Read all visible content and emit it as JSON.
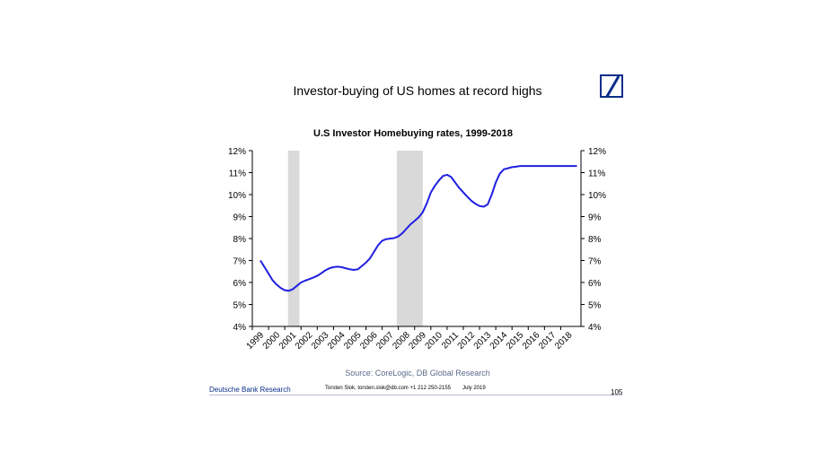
{
  "slide": {
    "title": "Investor-buying of US homes at record highs",
    "logo_icon": "deutsche-bank-logo"
  },
  "footer": {
    "brand": "Deutsche Bank Research",
    "contact": "Torsten Slok, torsten.slok@db.com  +1 212 250-2155",
    "date": "July 2019",
    "page": "105"
  },
  "colors": {
    "line": "#1f1fe0",
    "recession": "#d9d9d9",
    "brand": "#0a2e8a"
  },
  "chart_data": {
    "type": "line",
    "title": "U.S Investor Homebuying rates, 1999-2018",
    "source": "Source: CoreLogic, DB Global Research",
    "xlabel": "",
    "ylabel": "",
    "categories": [
      "1999",
      "2000",
      "2001",
      "2002",
      "2003",
      "2004",
      "2005",
      "2006",
      "2007",
      "2008",
      "2009",
      "2010",
      "2011",
      "2012",
      "2013",
      "2014",
      "2015",
      "2016",
      "2017",
      "2018"
    ],
    "ylim": [
      4,
      12
    ],
    "yticks_left": [
      "4%",
      "5%",
      "6%",
      "7%",
      "8%",
      "9%",
      "10%",
      "11%",
      "12%"
    ],
    "yticks_right": [
      "4%",
      "5%",
      "6%",
      "7%",
      "8%",
      "9%",
      "10%",
      "11%",
      "12%"
    ],
    "recessions": [
      [
        2001.2,
        2001.9
      ],
      [
        2007.9,
        2009.5
      ]
    ],
    "grid": false,
    "series": [
      {
        "x": [
          1999.5,
          1999.75,
          2000.0,
          2000.25,
          2000.5,
          2000.75,
          2001.0,
          2001.25,
          2001.5,
          2001.75,
          2002.0,
          2002.25,
          2002.5,
          2002.75,
          2003.0,
          2003.25,
          2003.5,
          2003.75,
          2004.0,
          2004.25,
          2004.5,
          2004.75,
          2005.0,
          2005.25,
          2005.5,
          2005.75,
          2006.0,
          2006.25,
          2006.5,
          2006.75,
          2007.0,
          2007.25,
          2007.5,
          2007.75,
          2008.0,
          2008.25,
          2008.5,
          2008.75,
          2009.0,
          2009.25,
          2009.5,
          2009.75,
          2010.0,
          2010.25,
          2010.5,
          2010.75,
          2011.0,
          2011.25,
          2011.5,
          2011.75,
          2012.0,
          2012.25,
          2012.5,
          2012.75,
          2013.0,
          2013.25,
          2013.5,
          2013.75,
          2014.0,
          2014.25,
          2014.5,
          2014.75,
          2015.0,
          2015.25,
          2015.5,
          2015.75,
          2016.0,
          2016.25,
          2016.5,
          2016.75,
          2017.0,
          2017.25,
          2017.5,
          2017.75,
          2018.0,
          2018.25,
          2018.5,
          2018.75,
          2019.0
        ],
        "values": [
          7.0,
          6.7,
          6.4,
          6.1,
          5.9,
          5.75,
          5.65,
          5.62,
          5.7,
          5.85,
          6.0,
          6.08,
          6.15,
          6.22,
          6.3,
          6.42,
          6.55,
          6.65,
          6.7,
          6.72,
          6.7,
          6.65,
          6.6,
          6.57,
          6.6,
          6.75,
          6.9,
          7.1,
          7.4,
          7.7,
          7.9,
          7.97,
          8.0,
          8.02,
          8.1,
          8.25,
          8.45,
          8.65,
          8.8,
          8.97,
          9.2,
          9.6,
          10.1,
          10.4,
          10.65,
          10.85,
          10.9,
          10.8,
          10.55,
          10.3,
          10.1,
          9.9,
          9.72,
          9.58,
          9.48,
          9.45,
          9.55,
          10.0,
          10.55,
          10.95,
          11.15,
          11.2,
          11.25,
          11.27,
          11.3,
          11.3,
          11.3,
          11.3,
          11.3,
          11.3,
          11.3,
          11.3,
          11.3,
          11.3,
          11.3,
          11.3,
          11.3,
          11.3,
          11.3
        ]
      }
    ]
  }
}
